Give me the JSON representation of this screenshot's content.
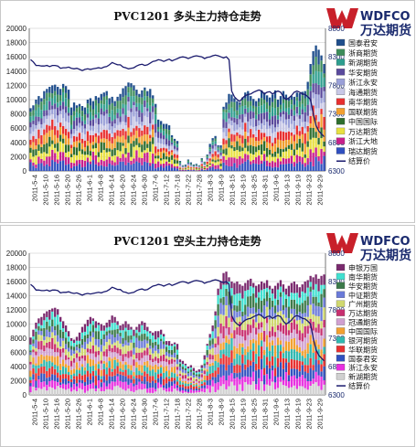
{
  "chart_data": [
    {
      "type": "bar",
      "title": "PVC1201 多头主力持仓走势",
      "brand": {
        "latin": "WDFCO",
        "name": "万达期货"
      },
      "ylim_left": [
        0,
        20000
      ],
      "yticks_left": [
        "0",
        "2000",
        "4000",
        "6000",
        "8000",
        "10000",
        "12000",
        "14000",
        "16000",
        "18000",
        "20000"
      ],
      "ylim_right": [
        6300,
        8800
      ],
      "yticks_right": [
        "6300",
        "6800",
        "7300",
        "7800",
        "8300",
        "8800"
      ],
      "x_ticks": [
        "2011-5-4",
        "2011-5-10",
        "2011-5-16",
        "2011-5-20",
        "2011-5-26",
        "2011-6-1",
        "2011-6-8",
        "2011-6-14",
        "2011-6-20",
        "2011-6-24",
        "2011-6-30",
        "2011-7-6",
        "2011-7-12",
        "2011-7-18",
        "2011-7-22",
        "2011-7-28",
        "2011-8-3",
        "2011-8-9",
        "2011-8-15",
        "2011-8-19",
        "2011-8-25",
        "2011-8-31",
        "2011-9-6",
        "2011-9-13",
        "2011-9-19",
        "2011-9-23",
        "2011-9-29"
      ],
      "series_names": [
        "国泰君安",
        "浙商期货",
        "新湖期货",
        "华安期货",
        "浙江永安",
        "海通期货",
        "南华期货",
        "国联期货",
        "中国国际",
        "万达期货",
        "浙江大地",
        "瑞达期货"
      ],
      "series_colors": [
        "#1f4e8c",
        "#3c8c5a",
        "#2e9e8f",
        "#5a4a9c",
        "#9aa0d8",
        "#c8c8e6",
        "#e83030",
        "#f2a030",
        "#2e6e2e",
        "#e8e040",
        "#c8208c",
        "#3050c0"
      ],
      "line_name": "结算价",
      "line_color": "#1a1a6e",
      "line_values": [
        8250,
        8210,
        8150,
        8150,
        8140,
        8140,
        8150,
        8130,
        8150,
        8150,
        8140,
        8100,
        8110,
        8110,
        8120,
        8100,
        8090,
        8100,
        8080,
        8060,
        8080,
        8090,
        8080,
        8090,
        8100,
        8110,
        8100,
        8120,
        8130,
        8160,
        8200,
        8180,
        8160,
        8160,
        8120,
        8110,
        8090,
        8100,
        8110,
        8140,
        8160,
        8170,
        8150,
        8160,
        8190,
        8220,
        8230,
        8250,
        8240,
        8220,
        8240,
        8260,
        8230,
        8250,
        8270,
        8290,
        8300,
        8290,
        8270,
        8290,
        8310,
        8320,
        8310,
        8300,
        8270,
        8290,
        8300,
        8320,
        8330,
        8320,
        8300,
        8280,
        8300,
        8250,
        7700,
        7600,
        7550,
        7520,
        7580,
        7620,
        7640,
        7650,
        7680,
        7700,
        7720,
        7700,
        7650,
        7680,
        7690,
        7650,
        7680,
        7700,
        7680,
        7600,
        7550,
        7580,
        7620,
        7680,
        7700,
        7680,
        7650,
        7640,
        7600,
        7550,
        7300,
        7100,
        7000,
        6950,
        6900
      ],
      "bar_totals": [
        8800,
        9200,
        10000,
        10500,
        10200,
        11200,
        11500,
        11800,
        12000,
        12100,
        11800,
        11500,
        12200,
        11900,
        11400,
        8900,
        9600,
        9200,
        9400,
        9100,
        8900,
        10000,
        10200,
        9800,
        10500,
        10300,
        10800,
        11000,
        11200,
        10200,
        10400,
        9800,
        10400,
        10800,
        11600,
        11900,
        12400,
        12300,
        12000,
        11400,
        10800,
        11300,
        11700,
        11200,
        11500,
        10600,
        9400,
        7200,
        7000,
        6600,
        6600,
        6400,
        5000,
        4500,
        4200,
        1400,
        800,
        900,
        1600,
        1200,
        900,
        1000,
        800,
        1800,
        1300,
        2300,
        3800,
        4600,
        4900,
        3600,
        3600,
        9000,
        9600,
        10800,
        10700,
        10200,
        9800,
        9600,
        10300,
        11000,
        11200,
        10500,
        10100,
        9800,
        10200,
        11300,
        11000,
        10600,
        10300,
        10700,
        11300,
        10000,
        10500,
        11200,
        10700,
        10200,
        10500,
        10400,
        11000,
        10900,
        11100,
        11200,
        12500,
        15000,
        16800,
        17600,
        17000,
        16200,
        15000
      ],
      "annotations": []
    },
    {
      "type": "bar",
      "title": "PVC1201 空头主力持仓走势",
      "brand": {
        "latin": "WDFCO",
        "name": "万达期货"
      },
      "ylim_left": [
        0,
        20000
      ],
      "yticks_left": [
        "0",
        "2000",
        "4000",
        "6000",
        "8000",
        "10000",
        "12000",
        "14000",
        "16000",
        "18000",
        "20000"
      ],
      "ylim_right": [
        6300,
        8800
      ],
      "yticks_right": [
        "6300",
        "6800",
        "7300",
        "7800",
        "8300",
        "8800"
      ],
      "x_ticks": [
        "2011-5-4",
        "2011-5-10",
        "2011-5-16",
        "2011-5-20",
        "2011-5-26",
        "2011-6-1",
        "2011-6-8",
        "2011-6-14",
        "2011-6-20",
        "2011-6-24",
        "2011-6-30",
        "2011-7-6",
        "2011-7-12",
        "2011-7-18",
        "2011-7-22",
        "2011-7-28",
        "2011-8-3",
        "2011-8-9",
        "2011-8-15",
        "2011-8-19",
        "2011-8-25",
        "2011-8-31",
        "2011-9-6",
        "2011-9-13",
        "2011-9-19",
        "2011-9-23",
        "2011-9-29"
      ],
      "series_names": [
        "申银万国",
        "南华期货",
        "华安期货",
        "中证期货",
        "广州期货",
        "万达期货",
        "冠通期货",
        "中国国际",
        "银河期货",
        "华联期货",
        "国泰君安",
        "浙江永安",
        "新湖期货"
      ],
      "series_colors": [
        "#7a2a6e",
        "#40e0d0",
        "#3c7a4a",
        "#6a7ad8",
        "#d0d870",
        "#c83070",
        "#d0a0d0",
        "#f2a030",
        "#30b8b0",
        "#e83030",
        "#3050c0",
        "#e830e0",
        "#d0d0d0"
      ],
      "line_name": "结算价",
      "line_color": "#1a1a6e",
      "line_values": [
        8250,
        8210,
        8150,
        8150,
        8140,
        8140,
        8150,
        8130,
        8150,
        8150,
        8140,
        8100,
        8110,
        8110,
        8120,
        8100,
        8090,
        8100,
        8080,
        8060,
        8080,
        8090,
        8080,
        8090,
        8100,
        8110,
        8100,
        8120,
        8130,
        8160,
        8200,
        8180,
        8160,
        8160,
        8120,
        8110,
        8090,
        8100,
        8110,
        8140,
        8160,
        8170,
        8150,
        8160,
        8190,
        8220,
        8230,
        8250,
        8240,
        8220,
        8240,
        8260,
        8230,
        8250,
        8270,
        8290,
        8300,
        8290,
        8270,
        8290,
        8310,
        8320,
        8310,
        8300,
        8270,
        8290,
        8300,
        8320,
        8330,
        8320,
        8300,
        8280,
        8300,
        8250,
        7700,
        7600,
        7550,
        7520,
        7580,
        7620,
        7640,
        7650,
        7680,
        7700,
        7720,
        7700,
        7650,
        7680,
        7690,
        7650,
        7680,
        7700,
        7680,
        7600,
        7550,
        7580,
        7620,
        7680,
        7700,
        7680,
        7650,
        7640,
        7600,
        7550,
        7300,
        7100,
        7000,
        6950,
        6900
      ],
      "bar_totals": [
        8100,
        9200,
        10200,
        10800,
        11000,
        11500,
        11800,
        12000,
        12200,
        12300,
        12100,
        11000,
        10400,
        9800,
        9000,
        8000,
        7800,
        8200,
        8800,
        9600,
        10000,
        10600,
        11000,
        10800,
        10400,
        10200,
        10000,
        9800,
        10200,
        10600,
        11200,
        11000,
        10400,
        9800,
        10000,
        10400,
        10000,
        9600,
        9200,
        9600,
        10000,
        10400,
        10200,
        9600,
        9000,
        8800,
        9000,
        9000,
        9200,
        8600,
        7600,
        7600,
        7200,
        7400,
        7200,
        5000,
        4800,
        4400,
        4000,
        4200,
        3800,
        3400,
        3600,
        4200,
        5600,
        7200,
        8600,
        9800,
        11800,
        15000,
        16000,
        17200,
        17400,
        16600,
        16000,
        15800,
        16000,
        15600,
        15400,
        15800,
        16200,
        16400,
        15800,
        15400,
        15600,
        16000,
        15800,
        16200,
        15400,
        15000,
        15400,
        15800,
        16200,
        15600,
        15000,
        15400,
        15800,
        16000,
        15600,
        15200,
        15600,
        16000,
        16200,
        16800,
        16600,
        17000,
        16400,
        16800,
        17000
      ],
      "annotations": []
    }
  ]
}
